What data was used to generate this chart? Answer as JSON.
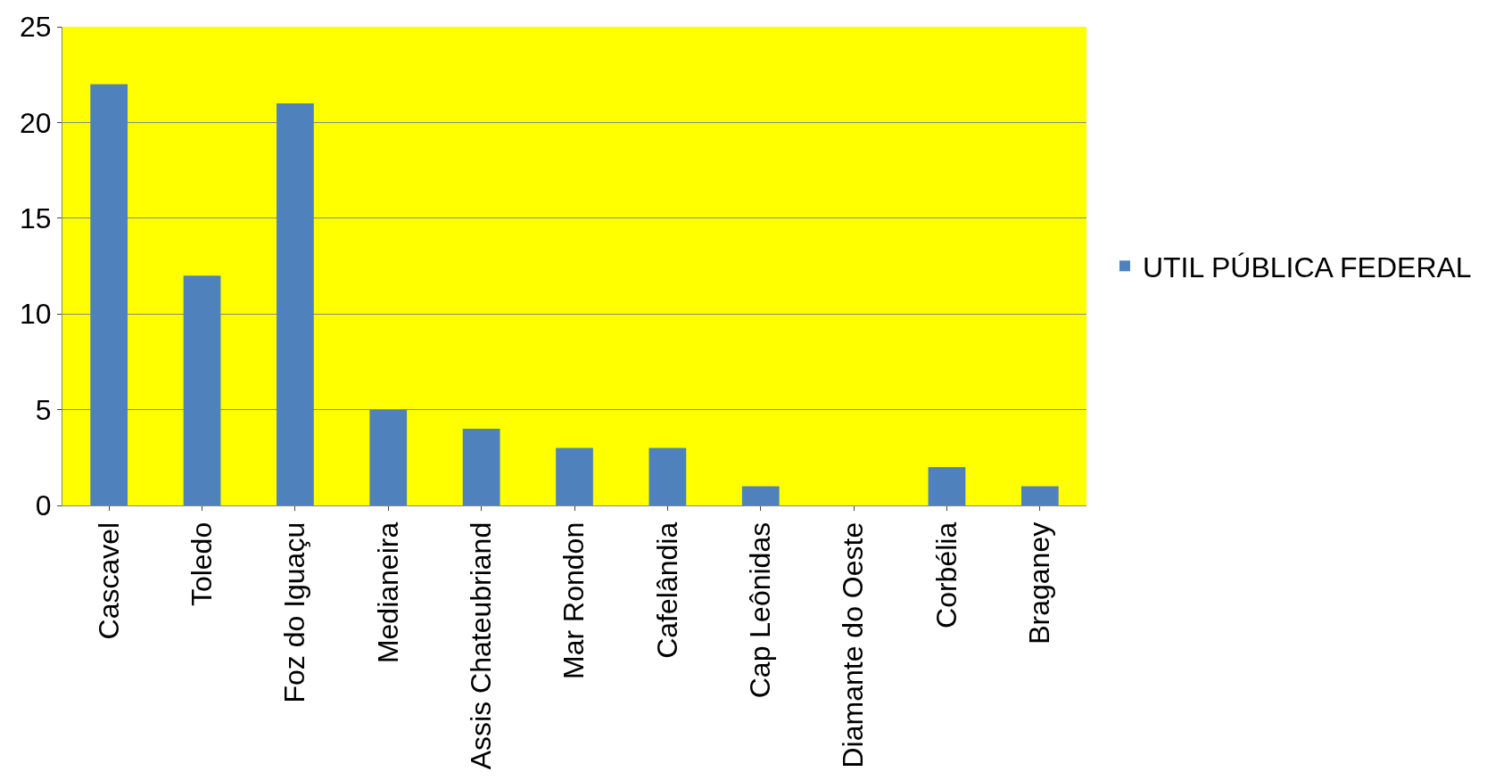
{
  "chart_data": {
    "type": "bar",
    "categories": [
      "Cascavel",
      "Toledo",
      "Foz do Iguaçu",
      "Medianeira",
      "Assis Chateubriand",
      "Mar Rondon",
      "Cafelândia",
      "Cap Leônidas",
      "Diamante do Oeste",
      "Corbélia",
      "Braganey"
    ],
    "series": [
      {
        "name": "UTIL PÚBLICA FEDERAL",
        "color": "#4f81bd",
        "values": [
          22,
          12,
          21,
          5,
          4,
          3,
          3,
          1,
          0,
          2,
          1
        ]
      }
    ],
    "ylim": [
      0,
      25
    ],
    "yticks": [
      0,
      5,
      10,
      15,
      20,
      25
    ],
    "grid": "y",
    "legend": "right"
  }
}
